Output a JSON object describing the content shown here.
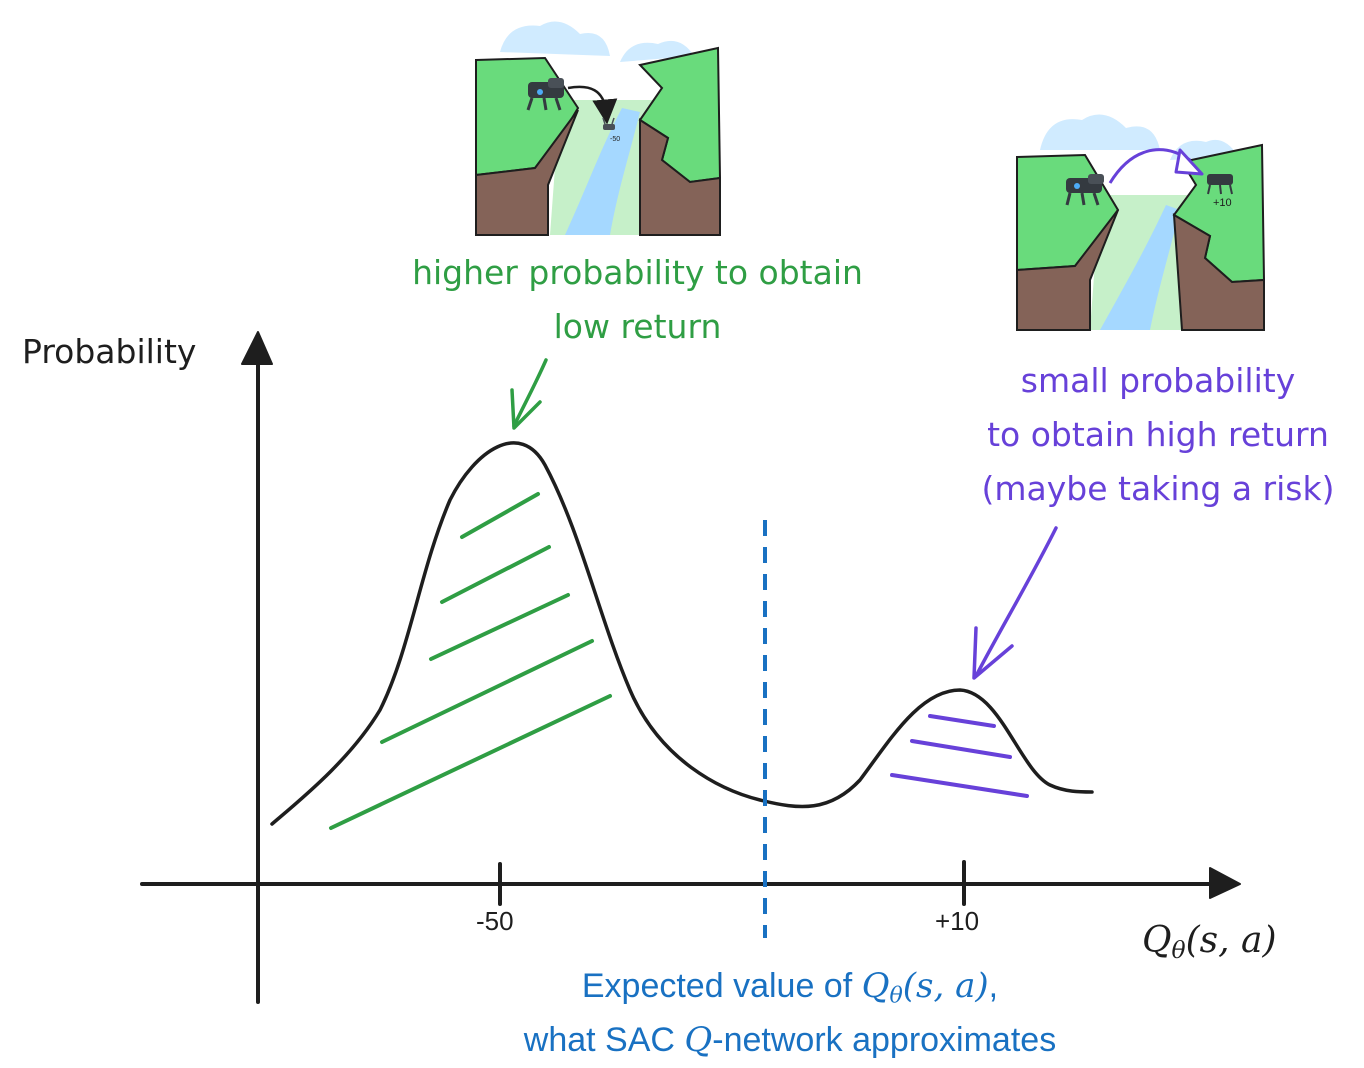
{
  "annotations": {
    "low_return_line1": "higher probability to obtain",
    "low_return_line2": "low return",
    "high_return_line1": "small probability",
    "high_return_line2": "to obtain high return",
    "high_return_line3": "(maybe taking a risk)"
  },
  "axes": {
    "y_label": "Probability",
    "x_label_main": "Q",
    "x_label_sub": "θ",
    "x_label_args": "(s, a)",
    "ticks": [
      "-50",
      "+10"
    ]
  },
  "expected_value": {
    "line1_prefix": "Expected value of ",
    "line1_math": "Q",
    "line1_math_sub": "θ",
    "line1_math_args": "(s, a)",
    "line1_suffix": ",",
    "line2_prefix": "what SAC ",
    "line2_math": "Q",
    "line2_suffix": "-network approximates"
  },
  "scenes": {
    "fall_reward": "-50",
    "jump_reward": "+10"
  },
  "colors": {
    "green": "#2f9e44",
    "purple": "#6741d9",
    "blue": "#1971c2",
    "cliff_green": "#69db7c",
    "cliff_brown": "#846358",
    "river": "#a5d8ff",
    "valley": "#c6f0c9",
    "cloud": "#d0ebff"
  }
}
